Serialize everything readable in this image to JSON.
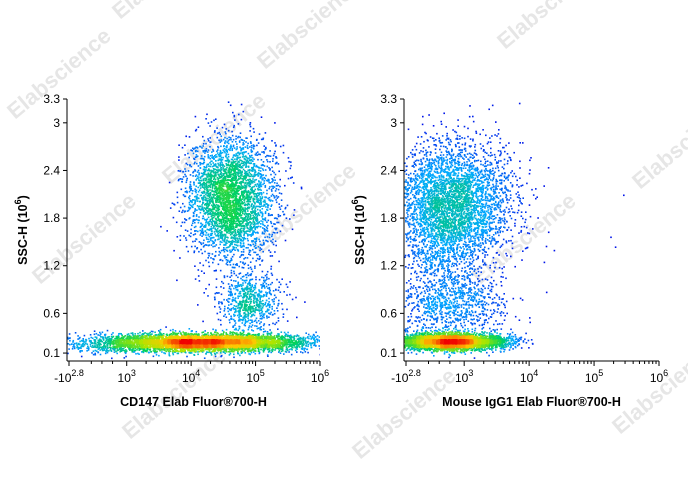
{
  "watermark": "Elabscience",
  "chart_data": [
    {
      "type": "scatter",
      "subtype": "flow-cytometry-density",
      "xlabel": "CD147 Elab Fluor®700-H",
      "ylabel": "SSC-H",
      "ylabel_exp": "6",
      "x_scale": "biexponential",
      "y_scale": "linear",
      "ylim": [
        0,
        3.3
      ],
      "y_ticks": [
        {
          "value": 0.1,
          "label": "0.1"
        },
        {
          "value": 0.6,
          "label": "0.6"
        },
        {
          "value": 1.2,
          "label": "1.2"
        },
        {
          "value": 1.8,
          "label": "1.8"
        },
        {
          "value": 2.4,
          "label": "2.4"
        },
        {
          "value": 3.0,
          "label": "3"
        },
        {
          "value": 3.3,
          "label": "3.3"
        }
      ],
      "x_ticks": [
        {
          "value": -631,
          "base": "-10",
          "exp": "2.8"
        },
        {
          "value": 1000,
          "base": "10",
          "exp": "3"
        },
        {
          "value": 10000,
          "base": "10",
          "exp": "4"
        },
        {
          "value": 100000,
          "base": "10",
          "exp": "5"
        },
        {
          "value": 1000000,
          "base": "10",
          "exp": "6"
        }
      ],
      "populations": [
        {
          "x": 15000,
          "y": 0.25,
          "count": 4600,
          "sx": 0.2,
          "sy": 0.05,
          "core": true
        },
        {
          "x": 40000,
          "y": 2.05,
          "count": 3400,
          "sx": 0.085,
          "sy": 0.38
        },
        {
          "x": 80000,
          "y": 0.75,
          "count": 700,
          "sx": 0.06,
          "sy": 0.18
        },
        {
          "x": 5000,
          "y": 0.2,
          "count": 700,
          "sx": 0.32,
          "sy": 0.06
        },
        {
          "x": 2000,
          "y": 0.18,
          "count": 280,
          "sx": 0.4,
          "sy": 0.04
        }
      ]
    },
    {
      "type": "scatter",
      "subtype": "flow-cytometry-density",
      "xlabel": "Mouse IgG1 Elab Fluor®700-H",
      "ylabel": "SSC-H",
      "ylabel_exp": "6",
      "x_scale": "biexponential",
      "y_scale": "linear",
      "ylim": [
        0,
        3.3
      ],
      "y_ticks": [
        {
          "value": 0.1,
          "label": "0.1"
        },
        {
          "value": 0.6,
          "label": "0.6"
        },
        {
          "value": 1.2,
          "label": "1.2"
        },
        {
          "value": 1.8,
          "label": "1.8"
        },
        {
          "value": 2.4,
          "label": "2.4"
        },
        {
          "value": 3.0,
          "label": "3"
        },
        {
          "value": 3.3,
          "label": "3.3"
        }
      ],
      "x_ticks": [
        {
          "value": -631,
          "base": "-10",
          "exp": "2.8"
        },
        {
          "value": 1000,
          "base": "10",
          "exp": "3"
        },
        {
          "value": 10000,
          "base": "10",
          "exp": "4"
        },
        {
          "value": 100000,
          "base": "10",
          "exp": "5"
        },
        {
          "value": 1000000,
          "base": "10",
          "exp": "6"
        }
      ],
      "populations": [
        {
          "x": 600,
          "y": 0.25,
          "count": 4200,
          "sx": 0.11,
          "sy": 0.05,
          "core": true
        },
        {
          "x": 650,
          "y": 2.0,
          "count": 3700,
          "sx": 0.12,
          "sy": 0.38
        },
        {
          "x": 600,
          "y": 0.7,
          "count": 800,
          "sx": 0.1,
          "sy": 0.2
        },
        {
          "x": 500,
          "y": 1.3,
          "count": 500,
          "sx": 0.09,
          "sy": 0.35
        },
        {
          "x": 10000,
          "y": 1.5,
          "count": 12,
          "sx": 0.6,
          "sy": 0.8
        }
      ]
    }
  ]
}
